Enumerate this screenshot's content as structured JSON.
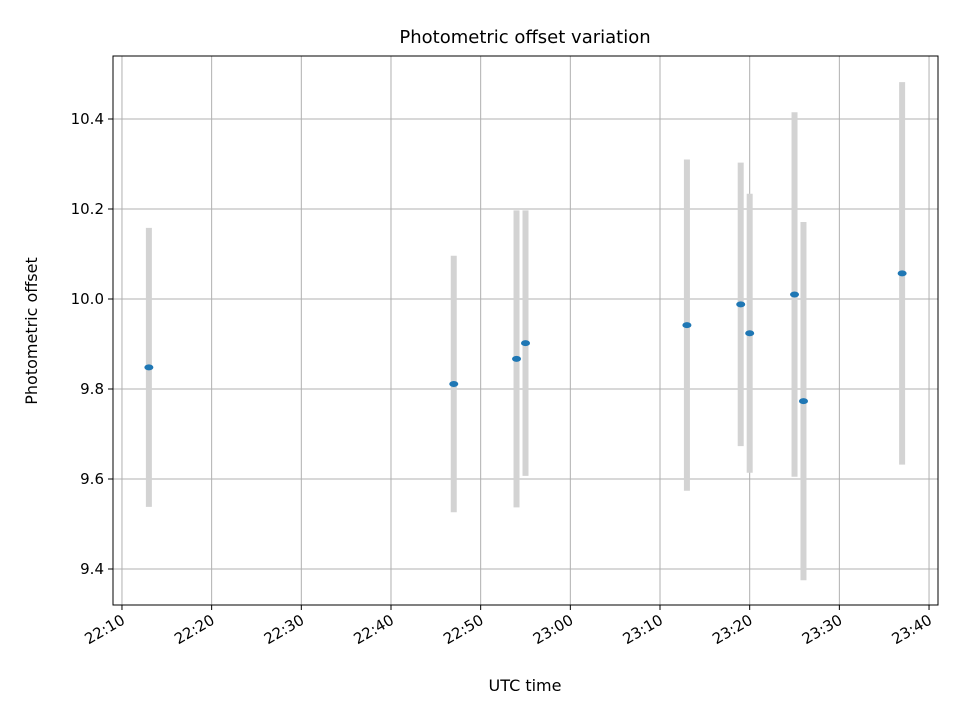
{
  "chart_data": {
    "type": "scatter",
    "title": "Photometric offset variation",
    "xlabel": "UTC time",
    "ylabel": "Photometric offset",
    "x_tick_labels": [
      "22:10",
      "22:20",
      "22:30",
      "22:40",
      "22:50",
      "23:00",
      "23:10",
      "23:20",
      "23:30",
      "23:40"
    ],
    "y_tick_labels": [
      "9.4",
      "9.6",
      "9.8",
      "10.0",
      "10.2",
      "10.4"
    ],
    "xlim": [
      "22:09",
      "23:41"
    ],
    "ylim": [
      9.32,
      10.54
    ],
    "grid": true,
    "legend": "none",
    "colors": {
      "points": "#1f77b4",
      "errorbars": "#d3d3d3",
      "grid": "#b0b0b0"
    },
    "points": [
      {
        "time": "22:13",
        "value": 9.848,
        "err": 0.31
      },
      {
        "time": "22:47",
        "value": 9.811,
        "err": 0.285
      },
      {
        "time": "22:54",
        "value": 9.867,
        "err": 0.33
      },
      {
        "time": "22:55",
        "value": 9.902,
        "err": 0.295
      },
      {
        "time": "23:13",
        "value": 9.942,
        "err": 0.368
      },
      {
        "time": "23:19",
        "value": 9.988,
        "err": 0.315
      },
      {
        "time": "23:20",
        "value": 9.924,
        "err": 0.31
      },
      {
        "time": "23:25",
        "value": 10.01,
        "err": 0.405
      },
      {
        "time": "23:26",
        "value": 9.773,
        "err": 0.398
      },
      {
        "time": "23:37",
        "value": 10.057,
        "err": 0.425
      }
    ]
  }
}
